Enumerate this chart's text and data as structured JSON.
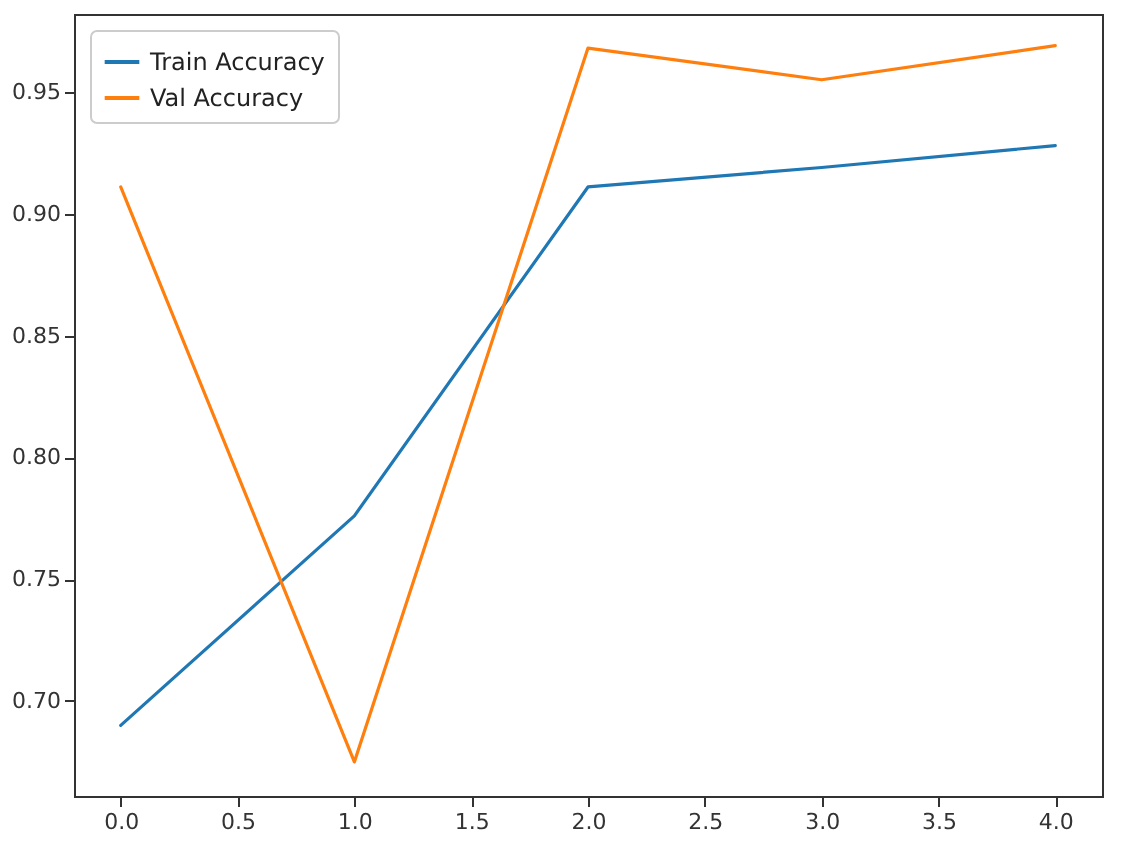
{
  "chart_data": {
    "type": "line",
    "x": [
      0,
      1,
      2,
      3,
      4
    ],
    "series": [
      {
        "name": "Train Accuracy",
        "color": "#1f77b4",
        "values": [
          0.69,
          0.776,
          0.911,
          0.919,
          0.928
        ]
      },
      {
        "name": "Val Accuracy",
        "color": "#ff7f0e",
        "values": [
          0.911,
          0.675,
          0.968,
          0.955,
          0.969
        ]
      }
    ],
    "xlim": [
      -0.2,
      4.2
    ],
    "xticks": [
      {
        "value": 0,
        "label": "0.0"
      },
      {
        "value": 0.5,
        "label": "0.5"
      },
      {
        "value": 1,
        "label": "1.0"
      },
      {
        "value": 1.5,
        "label": "1.5"
      },
      {
        "value": 2,
        "label": "2.0"
      },
      {
        "value": 2.5,
        "label": "2.5"
      },
      {
        "value": 3,
        "label": "3.0"
      },
      {
        "value": 3.5,
        "label": "3.5"
      },
      {
        "value": 4,
        "label": "4.0"
      }
    ],
    "ylim": [
      0.661,
      0.982
    ],
    "yticks": [
      {
        "value": 0.7,
        "label": "0.70"
      },
      {
        "value": 0.75,
        "label": "0.75"
      },
      {
        "value": 0.8,
        "label": "0.80"
      },
      {
        "value": 0.85,
        "label": "0.85"
      },
      {
        "value": 0.9,
        "label": "0.90"
      },
      {
        "value": 0.95,
        "label": "0.95"
      }
    ],
    "legend": "top left",
    "grid": false,
    "line_style": "solid",
    "marker": "none"
  }
}
